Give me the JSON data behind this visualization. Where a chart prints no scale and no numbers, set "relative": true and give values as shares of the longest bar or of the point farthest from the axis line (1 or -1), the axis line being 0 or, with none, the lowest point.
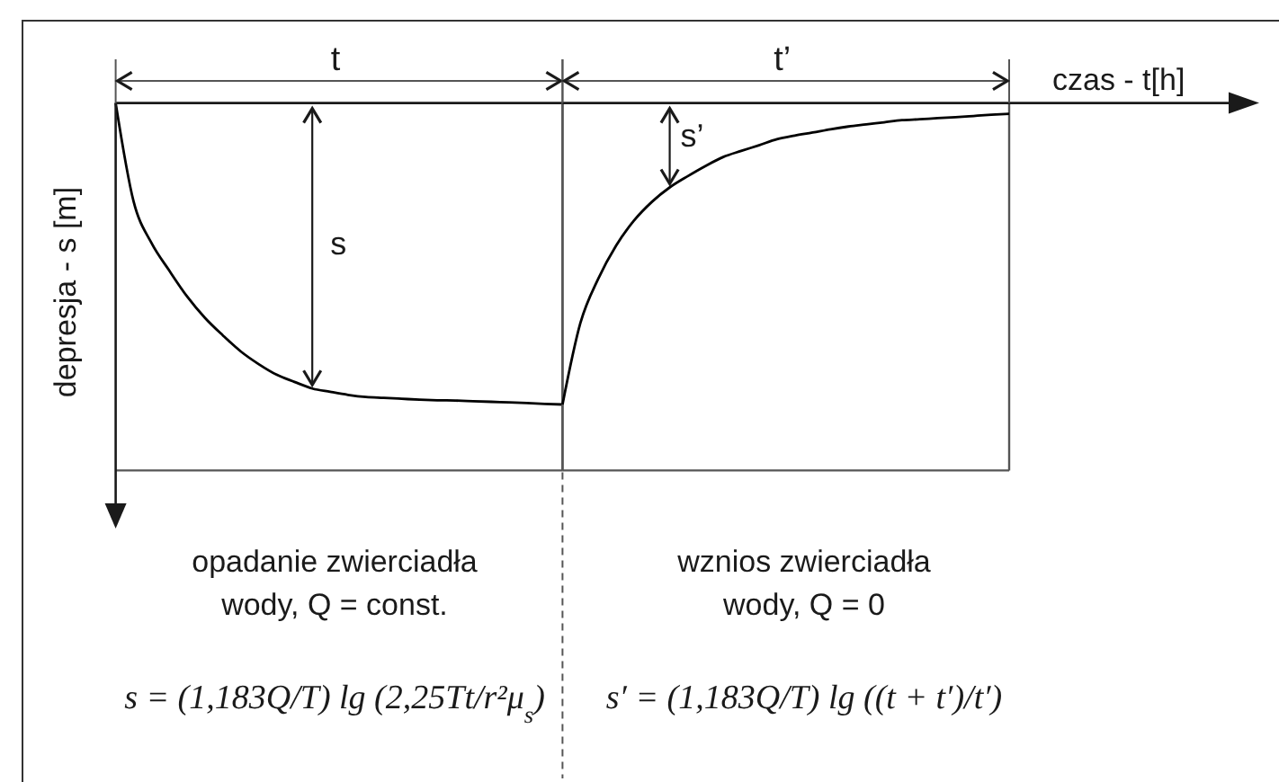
{
  "chart_data": [
    {
      "type": "line",
      "relative": true,
      "ylabel": "depresja - s [m]",
      "categories": [
        null,
        null,
        null,
        null,
        null,
        null,
        null,
        null,
        null,
        null,
        null,
        null,
        null,
        null,
        null,
        null,
        null,
        null,
        null,
        null,
        null,
        null,
        null,
        null,
        null,
        null
      ],
      "series": [
        {
          "color": "#000000",
          "values": [
            0,
            -0.326,
            -0.464,
            -0.556,
            -0.642,
            -0.713,
            -0.771,
            -0.824,
            -0.866,
            -0.901,
            -0.925,
            -0.947,
            -0.958,
            -0.968,
            -0.975,
            -0.978,
            -0.981,
            -0.984,
            -0.986,
            -0.987,
            -0.989,
            -0.991,
            -0.993,
            -0.995,
            -0.998,
            -1
          ]
        }
      ],
      "annotations": [
        "t",
        "s",
        "opadanie zwierciadła wody, Q = const.",
        "s = (1,183Q/T) lg (2,25Tt/r²μ$_{s}$)"
      ]
    },
    {
      "type": "line",
      "relative": true,
      "xlabel": "czas - t[h]",
      "categories": [
        null,
        null,
        null,
        null,
        null,
        null,
        null,
        null,
        null,
        null,
        null,
        null,
        null,
        null,
        null,
        null,
        null,
        null,
        null,
        null,
        null,
        null,
        null,
        null,
        null,
        null
      ],
      "series": [
        {
          "color": "#000000",
          "values": [
            -1,
            -0.73,
            -0.583,
            -0.473,
            -0.39,
            -0.328,
            -0.28,
            -0.243,
            -0.209,
            -0.179,
            -0.159,
            -0.14,
            -0.12,
            -0.108,
            -0.098,
            -0.087,
            -0.078,
            -0.071,
            -0.064,
            -0.057,
            -0.054,
            -0.05,
            -0.047,
            -0.043,
            -0.039,
            -0.036
          ]
        }
      ],
      "annotations": [
        "t’",
        "s’",
        "wznios zwierciadła wody, Q = 0",
        "s′ = (1,183Q/T) lg ((t + t′)/t′)"
      ]
    }
  ]
}
